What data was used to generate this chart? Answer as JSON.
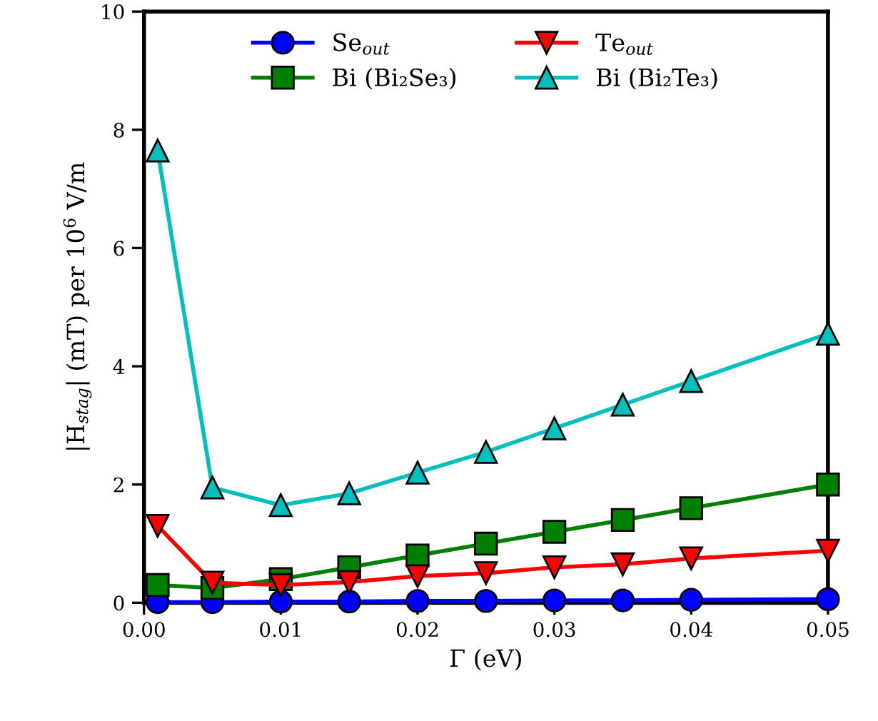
{
  "chart_data": {
    "type": "line",
    "xlabel": "Γ (eV)",
    "ylabel": "|H$_{stag}$| (mT) per 10$^{6}$ V/m",
    "x": [
      0.001,
      0.005,
      0.01,
      0.015,
      0.02,
      0.025,
      0.03,
      0.035,
      0.04,
      0.05
    ],
    "series": [
      {
        "name": "Se$_{out}$",
        "color": "#0000ff",
        "marker": "circle",
        "values": [
          0.01,
          0.01,
          0.02,
          0.02,
          0.03,
          0.03,
          0.04,
          0.04,
          0.05,
          0.06
        ]
      },
      {
        "name": "Bi (Bi₂Se₃)",
        "color": "#008000",
        "marker": "square",
        "values": [
          0.3,
          0.25,
          0.4,
          0.6,
          0.8,
          1.0,
          1.2,
          1.4,
          1.6,
          2.0
        ]
      },
      {
        "name": "Te$_{out}$",
        "color": "#ff0000",
        "marker": "triangle_down",
        "values": [
          1.3,
          0.34,
          0.3,
          0.35,
          0.45,
          0.5,
          0.6,
          0.65,
          0.75,
          0.88
        ]
      },
      {
        "name": "Bi (Bi₂Te₃)",
        "color": "#00bfbf",
        "marker": "triangle",
        "values": [
          7.65,
          1.95,
          1.65,
          1.85,
          2.2,
          2.55,
          2.95,
          3.35,
          3.75,
          4.55
        ]
      }
    ],
    "xlim": [
      0.0,
      0.05
    ],
    "xticks": [
      {
        "value": 0.0,
        "label": "0.00"
      },
      {
        "value": 0.01,
        "label": "0.01"
      },
      {
        "value": 0.02,
        "label": "0.02"
      },
      {
        "value": 0.03,
        "label": "0.03"
      },
      {
        "value": 0.04,
        "label": "0.04"
      },
      {
        "value": 0.05,
        "label": "0.05"
      }
    ],
    "ylim": [
      0,
      10
    ],
    "yticks": [
      0,
      2,
      4,
      6,
      8,
      10
    ],
    "grid": false,
    "legend": "top",
    "line_style": "solid"
  }
}
